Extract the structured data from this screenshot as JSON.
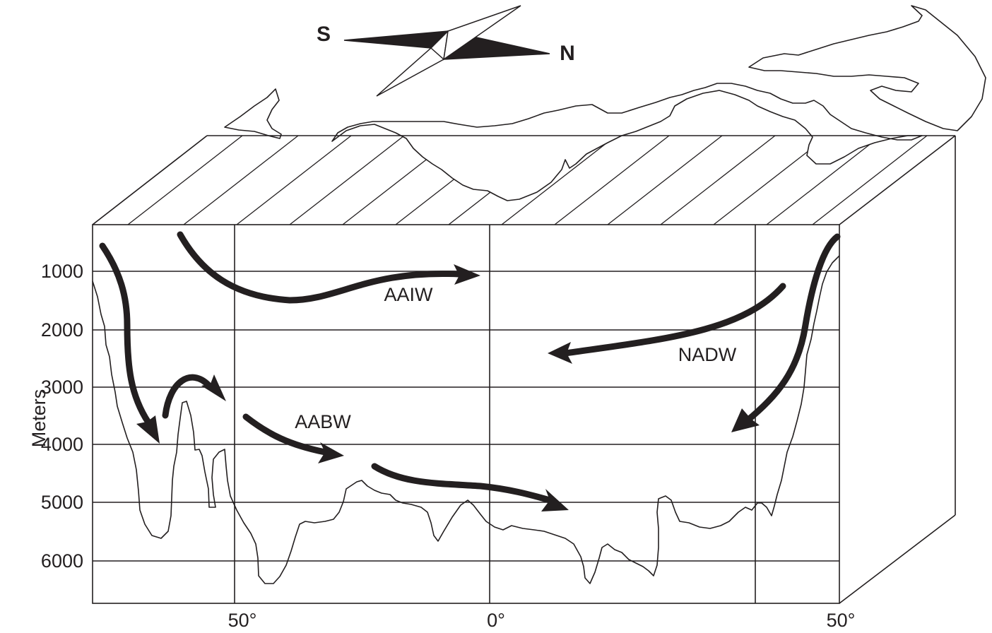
{
  "compass": {
    "south_label": "S",
    "north_label": "N"
  },
  "y_axis": {
    "label": "Meters",
    "ticks": [
      "1000",
      "2000",
      "3000",
      "4000",
      "5000",
      "6000"
    ]
  },
  "x_axis": {
    "ticks": [
      "50°",
      "0°",
      "50°"
    ]
  },
  "water_masses": {
    "aaiw": "AAIW",
    "nadw": "NADW",
    "aabw": "AABW"
  }
}
